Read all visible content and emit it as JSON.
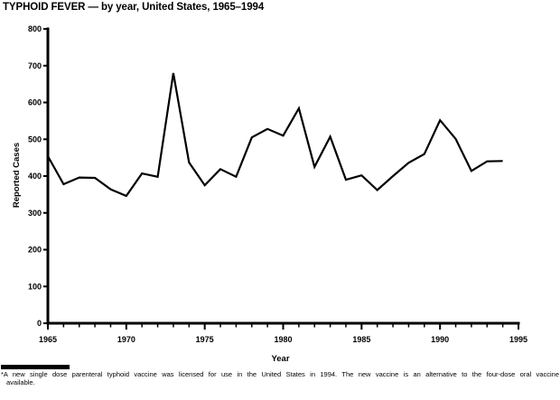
{
  "title": "TYPHOID FEVER — by year, United States, 1965–1994",
  "chart_data": {
    "type": "line",
    "title": "TYPHOID FEVER — by year, United States, 1965–1994",
    "xlabel": "Year",
    "ylabel": "Reported Cases",
    "xlim": [
      1965,
      1995
    ],
    "ylim": [
      0,
      800
    ],
    "y_ticks": [
      0,
      100,
      200,
      300,
      400,
      500,
      600,
      700,
      800
    ],
    "x_major_ticks": [
      1965,
      1970,
      1975,
      1980,
      1985,
      1990,
      1995
    ],
    "x_minor_ticks_every_year": true,
    "grid": false,
    "legend": "none",
    "line_color": "#000000",
    "background_color": "#ffffff",
    "x": [
      1965,
      1966,
      1967,
      1968,
      1969,
      1970,
      1971,
      1972,
      1973,
      1974,
      1975,
      1976,
      1977,
      1978,
      1979,
      1980,
      1981,
      1982,
      1983,
      1984,
      1985,
      1986,
      1987,
      1988,
      1989,
      1990,
      1991,
      1992,
      1993,
      1994
    ],
    "values": [
      454,
      378,
      396,
      395,
      364,
      346,
      407,
      398,
      680,
      437,
      375,
      419,
      398,
      505,
      528,
      510,
      584,
      425,
      507,
      390,
      402,
      362,
      400,
      436,
      460,
      552,
      501,
      414,
      440,
      441
    ]
  },
  "footnote": {
    "text": "*A new single dose parenteral typhoid vaccine was licensed for use in the United States in 1994. The new vaccine is an alternative to the four-dose oral vaccine available."
  }
}
